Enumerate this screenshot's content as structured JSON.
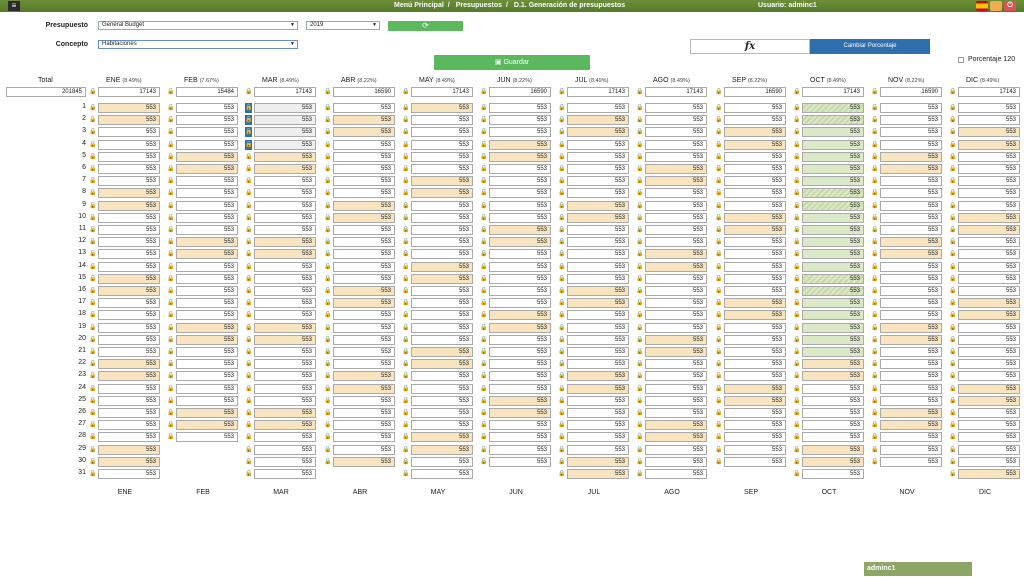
{
  "topbar": {
    "menu_icon": "hamburger-icon",
    "crumbs": [
      "Menú Principal",
      "Presupuestos",
      "D.1. Generación de presupuestos"
    ],
    "user": "Usuario: adminc1",
    "icons": [
      {
        "name": "spain-flag-icon",
        "color": "#c60b1e"
      },
      {
        "name": "print-icon",
        "color": "#f0ad4e"
      },
      {
        "name": "power-icon",
        "color": "#d9534f"
      }
    ]
  },
  "filters": {
    "presupuesto_label": "Presupuesto",
    "presupuesto_value": "General Budget",
    "year_value": "2019",
    "concepto_label": "Concepto",
    "concepto_value": "Habitaciones",
    "refresh_icon": "refresh-icon"
  },
  "actions": {
    "guardar_label": "Guardar",
    "fx_label": "fx",
    "cambiar_label": "Cambiar Porcentaje",
    "porcentaje_label": "Porcentaje 120"
  },
  "grid": {
    "total_label": "Total",
    "total_value": "201845",
    "cell_value": "553",
    "months": [
      {
        "label": "ENE",
        "pct": "(8.49%)",
        "total": "17143",
        "days": 31
      },
      {
        "label": "FEB",
        "pct": "(7.67%)",
        "total": "15484",
        "days": 28
      },
      {
        "label": "MAR",
        "pct": "(8.49%)",
        "total": "17143",
        "days": 31
      },
      {
        "label": "ABR",
        "pct": "(8.22%)",
        "total": "16590",
        "days": 30
      },
      {
        "label": "MAY",
        "pct": "(8.49%)",
        "total": "17143",
        "days": 31
      },
      {
        "label": "JUN",
        "pct": "(8.22%)",
        "total": "16590",
        "days": 30
      },
      {
        "label": "JUL",
        "pct": "(8.49%)",
        "total": "17143",
        "days": 31
      },
      {
        "label": "AGO",
        "pct": "(8.49%)",
        "total": "17143",
        "days": 31
      },
      {
        "label": "SEP",
        "pct": "(8.22%)",
        "total": "16590",
        "days": 30
      },
      {
        "label": "OCT",
        "pct": "(8.49%)",
        "total": "17143",
        "days": 31
      },
      {
        "label": "NOV",
        "pct": "(8.22%)",
        "total": "16590",
        "days": 30
      },
      {
        "label": "DIC",
        "pct": "(8.49%)",
        "total": "17143",
        "days": 31
      }
    ],
    "weekend_start_day": 5,
    "highlight_color": "#f8e5c0",
    "green_color": "#dce9c8"
  },
  "footer": {
    "user_label": "adminc1"
  }
}
